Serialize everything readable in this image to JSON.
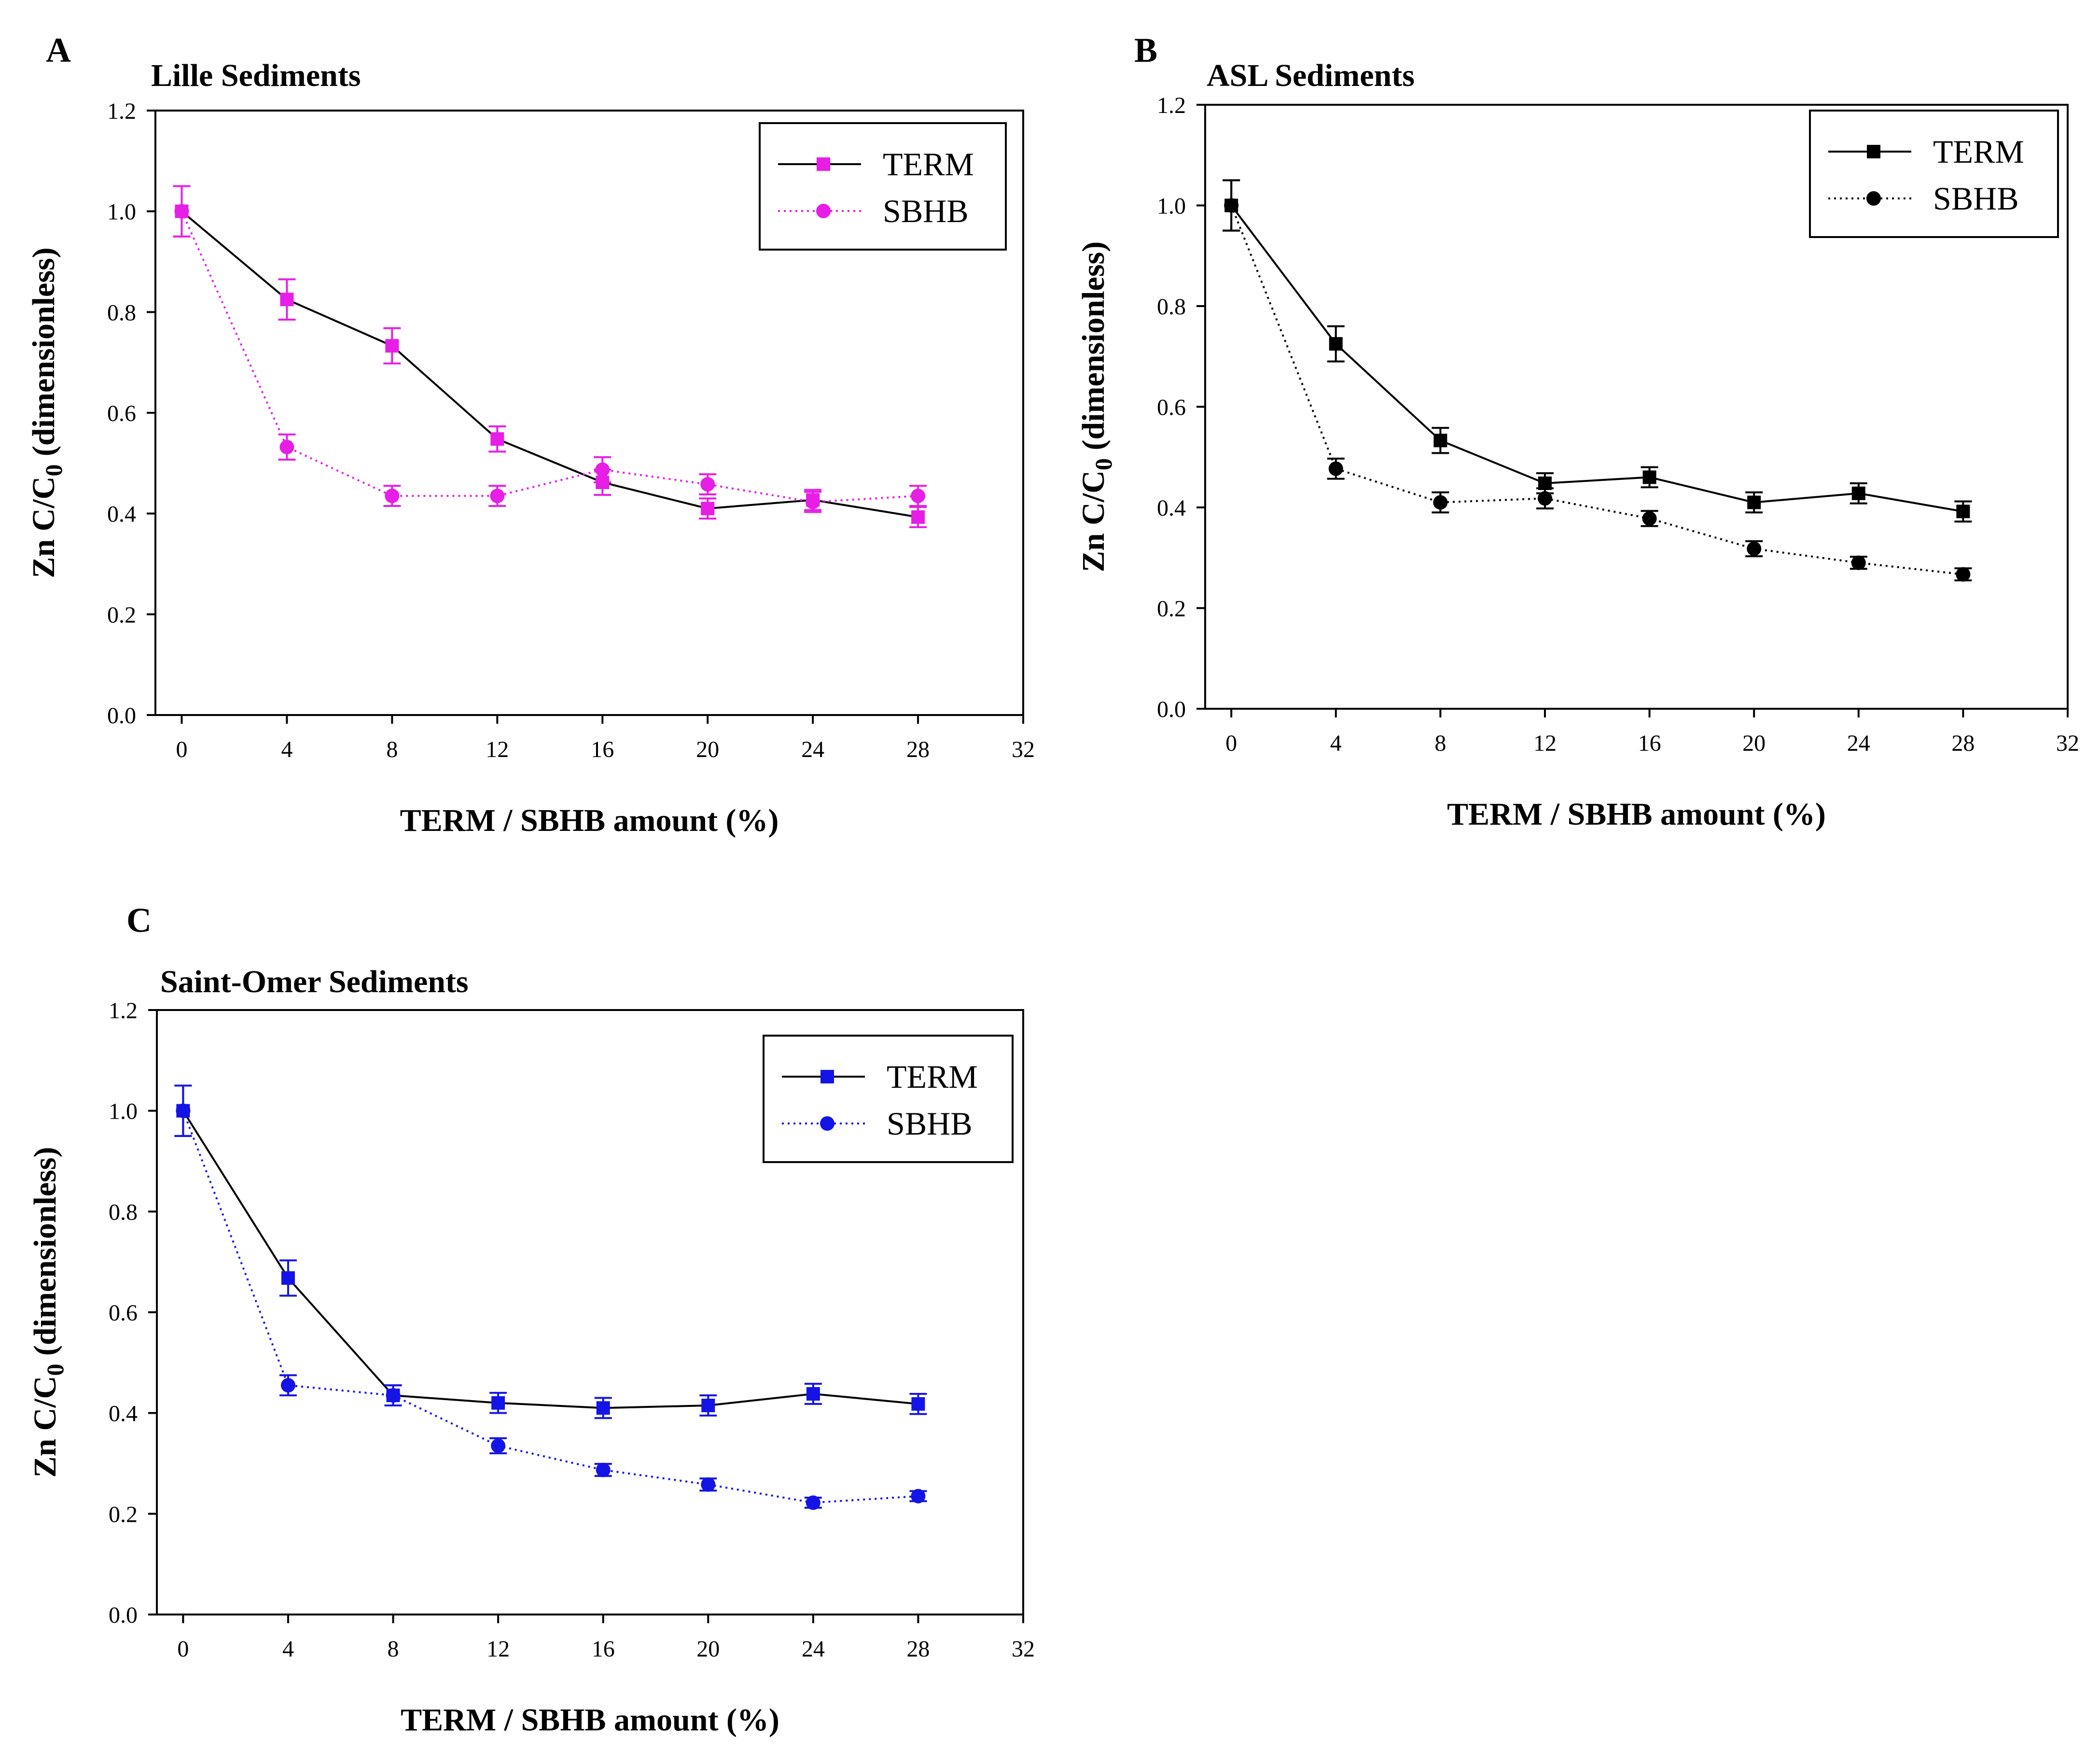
{
  "chart_data": [
    {
      "panel": "A",
      "type": "line",
      "title": "Lille Sediments",
      "xlabel": "TERM / SBHB amount (%)",
      "ylabel": "Zn C/C0 (dimensionless)",
      "ylabel_main": "Zn C/C",
      "ylabel_sub": "0",
      "ylabel_tail": " (dimensionless)",
      "xlim": [
        -1,
        32
      ],
      "ylim": [
        0,
        1.2
      ],
      "xticks": [
        0,
        4,
        8,
        12,
        16,
        20,
        24,
        28,
        32
      ],
      "yticks": [
        "0.0",
        "0.2",
        "0.4",
        "0.6",
        "0.8",
        "1.0",
        "1.2"
      ],
      "x": [
        0,
        4,
        8,
        12,
        16,
        20,
        24,
        28
      ],
      "color": "#e61ee6",
      "legend_position": "top-right",
      "series": [
        {
          "name": "TERM",
          "marker": "square",
          "line": "solid",
          "values": [
            1.0,
            0.825,
            0.733,
            0.548,
            0.462,
            0.41,
            0.427,
            0.393
          ],
          "errors": [
            0.05,
            0.04,
            0.035,
            0.025,
            0.025,
            0.02,
            0.02,
            0.02
          ]
        },
        {
          "name": "SBHB",
          "marker": "circle",
          "line": "dotted",
          "values": [
            1.0,
            0.532,
            0.435,
            0.435,
            0.487,
            0.458,
            0.423,
            0.435
          ],
          "errors": [
            0.05,
            0.025,
            0.02,
            0.02,
            0.025,
            0.02,
            0.02,
            0.02
          ]
        }
      ]
    },
    {
      "panel": "B",
      "type": "line",
      "title": "ASL Sediments",
      "xlabel": "TERM / SBHB amount (%)",
      "ylabel": "Zn C/C0 (dimensionless)",
      "ylabel_main": "Zn C/C",
      "ylabel_sub": "0",
      "ylabel_tail": " (dimensionless)",
      "xlim": [
        -1,
        32
      ],
      "ylim": [
        0,
        1.2
      ],
      "xticks": [
        0,
        4,
        8,
        12,
        16,
        20,
        24,
        28,
        32
      ],
      "yticks": [
        "0.0",
        "0.2",
        "0.4",
        "0.6",
        "0.8",
        "1.0",
        "1.2"
      ],
      "x": [
        0,
        4,
        8,
        12,
        16,
        20,
        24,
        28
      ],
      "color": "#000000",
      "legend_position": "top-right",
      "series": [
        {
          "name": "TERM",
          "marker": "square",
          "line": "solid",
          "values": [
            1.0,
            0.725,
            0.533,
            0.448,
            0.46,
            0.41,
            0.428,
            0.392
          ],
          "errors": [
            0.05,
            0.035,
            0.025,
            0.02,
            0.02,
            0.02,
            0.02,
            0.02
          ]
        },
        {
          "name": "SBHB",
          "marker": "circle",
          "line": "dotted",
          "values": [
            1.0,
            0.477,
            0.41,
            0.418,
            0.378,
            0.318,
            0.29,
            0.267
          ],
          "errors": [
            0.05,
            0.02,
            0.02,
            0.02,
            0.015,
            0.015,
            0.012,
            0.012
          ]
        }
      ]
    },
    {
      "panel": "C",
      "type": "line",
      "title": "Saint-Omer Sediments",
      "xlabel": "TERM / SBHB amount (%)",
      "ylabel": "Zn C/C0 (dimensionless)",
      "ylabel_main": "Zn C/C",
      "ylabel_sub": "0",
      "ylabel_tail": " (dimensionless)",
      "xlim": [
        -1,
        32
      ],
      "ylim": [
        0,
        1.2
      ],
      "xticks": [
        0,
        4,
        8,
        12,
        16,
        20,
        24,
        28,
        32
      ],
      "yticks": [
        "0.0",
        "0.2",
        "0.4",
        "0.6",
        "0.8",
        "1.0",
        "1.2"
      ],
      "x": [
        0,
        4,
        8,
        12,
        16,
        20,
        24,
        28
      ],
      "color": "#1414e6",
      "legend_position": "top-right",
      "series": [
        {
          "name": "TERM",
          "marker": "square",
          "line": "solid",
          "values": [
            1.0,
            0.668,
            0.435,
            0.42,
            0.41,
            0.415,
            0.438,
            0.418
          ],
          "errors": [
            0.05,
            0.035,
            0.02,
            0.02,
            0.02,
            0.02,
            0.02,
            0.02
          ]
        },
        {
          "name": "SBHB",
          "marker": "circle",
          "line": "dotted",
          "values": [
            1.0,
            0.455,
            0.435,
            0.335,
            0.287,
            0.258,
            0.222,
            0.235
          ],
          "errors": [
            0.05,
            0.02,
            0.02,
            0.015,
            0.012,
            0.012,
            0.01,
            0.01
          ]
        }
      ]
    }
  ]
}
